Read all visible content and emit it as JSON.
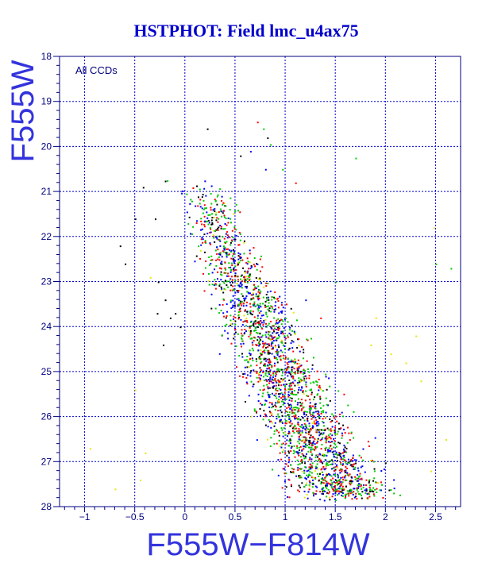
{
  "chart_data": {
    "type": "scatter",
    "title": "HSTPHOT: Field lmc_u4ax75",
    "xlabel": "F555W−F814W",
    "ylabel": "F555W",
    "annotation": "All CCDs",
    "xlim": [
      -1.25,
      2.75
    ],
    "ylim": [
      18,
      28
    ],
    "y_inverted": true,
    "grid": true,
    "x_ticks": [
      -1,
      -0.5,
      0,
      0.5,
      1,
      1.5,
      2,
      2.5
    ],
    "x_tick_labels": [
      "−1",
      "−0.5",
      "0",
      "0.5",
      "1",
      "1.5",
      "2",
      "2.5"
    ],
    "y_ticks": [
      18,
      19,
      20,
      21,
      22,
      23,
      24,
      25,
      26,
      27,
      28
    ],
    "y_tick_labels": [
      "18",
      "19",
      "20",
      "21",
      "22",
      "23",
      "24",
      "25",
      "26",
      "27",
      "28"
    ],
    "series_colors": [
      "#ff0000",
      "#00cc00",
      "#0000ff",
      "#000000",
      "#e6e600"
    ],
    "main_sequence_ridge": [
      {
        "mag": 21.0,
        "color": 0.2
      },
      {
        "mag": 22.0,
        "color": 0.35
      },
      {
        "mag": 23.0,
        "color": 0.55
      },
      {
        "mag": 24.0,
        "color": 0.75
      },
      {
        "mag": 25.0,
        "color": 0.95
      },
      {
        "mag": 26.0,
        "color": 1.15
      },
      {
        "mag": 27.0,
        "color": 1.4
      },
      {
        "mag": 27.7,
        "color": 1.6
      }
    ],
    "isolated_points": [
      {
        "x": 0.72,
        "y": 19.45,
        "c": 0
      },
      {
        "x": 0.78,
        "y": 19.6,
        "c": 1
      },
      {
        "x": 0.82,
        "y": 19.8,
        "c": 3
      },
      {
        "x": 0.85,
        "y": 19.95,
        "c": 1
      },
      {
        "x": 0.22,
        "y": 19.6,
        "c": 3
      },
      {
        "x": 0.55,
        "y": 20.2,
        "c": 3
      },
      {
        "x": 1.7,
        "y": 20.25,
        "c": 1
      },
      {
        "x": 0.8,
        "y": 20.5,
        "c": 2
      },
      {
        "x": 0.97,
        "y": 20.5,
        "c": 1
      },
      {
        "x": -0.18,
        "y": 20.75,
        "c": 1
      },
      {
        "x": -0.2,
        "y": 20.76,
        "c": 3
      },
      {
        "x": -0.42,
        "y": 20.9,
        "c": 3
      },
      {
        "x": -0.5,
        "y": 21.6,
        "c": 3
      },
      {
        "x": -0.3,
        "y": 21.6,
        "c": 3
      },
      {
        "x": -0.65,
        "y": 22.2,
        "c": 3
      },
      {
        "x": -0.6,
        "y": 22.6,
        "c": 3
      },
      {
        "x": -0.27,
        "y": 23.0,
        "c": 3
      },
      {
        "x": -0.2,
        "y": 23.4,
        "c": 3
      },
      {
        "x": -0.28,
        "y": 23.7,
        "c": 3
      },
      {
        "x": -0.15,
        "y": 23.8,
        "c": 3
      },
      {
        "x": -0.1,
        "y": 23.7,
        "c": 3
      },
      {
        "x": -0.05,
        "y": 24.0,
        "c": 3
      },
      {
        "x": -0.22,
        "y": 24.4,
        "c": 3
      },
      {
        "x": 2.48,
        "y": 21.8,
        "c": 4
      },
      {
        "x": 2.5,
        "y": 22.6,
        "c": 1
      },
      {
        "x": 2.65,
        "y": 22.7,
        "c": 1
      },
      {
        "x": 2.3,
        "y": 24.2,
        "c": 4
      },
      {
        "x": 2.2,
        "y": 24.8,
        "c": 4
      },
      {
        "x": 2.35,
        "y": 25.2,
        "c": 4
      },
      {
        "x": 2.6,
        "y": 26.5,
        "c": 4
      },
      {
        "x": 2.45,
        "y": 27.2,
        "c": 4
      },
      {
        "x": -0.5,
        "y": 25.4,
        "c": 4
      },
      {
        "x": -0.45,
        "y": 27.4,
        "c": 4
      },
      {
        "x": -0.7,
        "y": 27.6,
        "c": 4
      },
      {
        "x": -0.95,
        "y": 26.7,
        "c": 4
      },
      {
        "x": -0.4,
        "y": 26.8,
        "c": 4
      },
      {
        "x": 1.9,
        "y": 23.8,
        "c": 4
      },
      {
        "x": 2.05,
        "y": 24.6,
        "c": 4
      },
      {
        "x": 1.85,
        "y": 24.4,
        "c": 4
      },
      {
        "x": 1.5,
        "y": 23.0,
        "c": 1
      },
      {
        "x": 1.2,
        "y": 23.4,
        "c": 2
      },
      {
        "x": 1.35,
        "y": 23.8,
        "c": 0
      },
      {
        "x": 0.15,
        "y": 22.3,
        "c": 4
      },
      {
        "x": -0.35,
        "y": 22.9,
        "c": 4
      },
      {
        "x": 1.1,
        "y": 20.8,
        "c": 0
      },
      {
        "x": 0.65,
        "y": 20.1,
        "c": 2
      }
    ]
  }
}
